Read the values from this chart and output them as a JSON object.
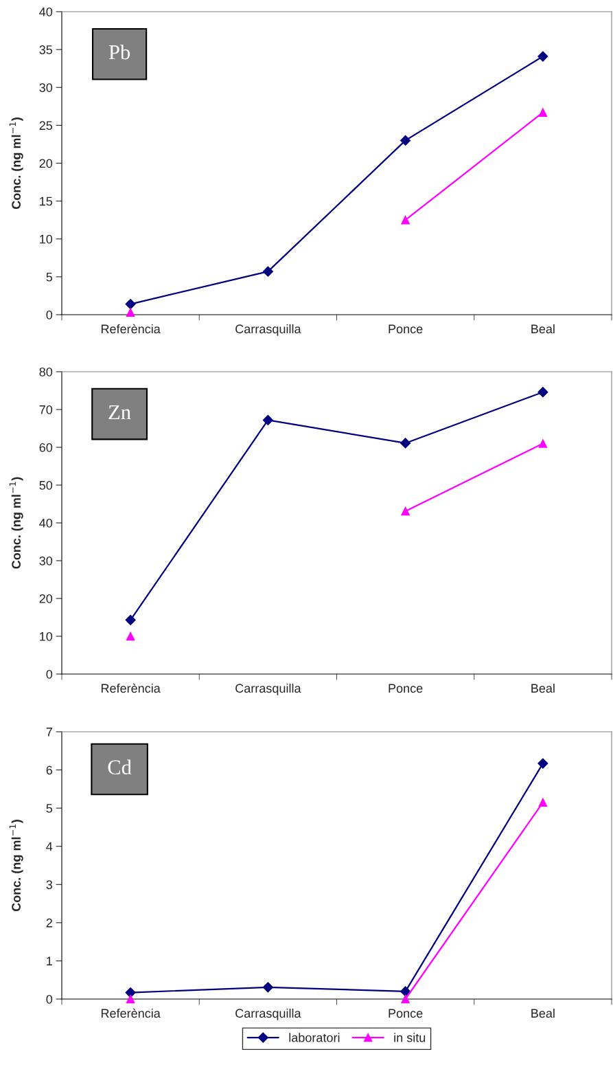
{
  "chart_data": [
    {
      "type": "line",
      "categories": [
        "Referència",
        "Carrasquilla",
        "Ponce",
        "Beal"
      ],
      "ylabel": "Conc. (ng ml$^{−1}$)",
      "annotations": [
        "Pb"
      ],
      "ylim": [
        0,
        40
      ],
      "yticks": [
        0,
        5,
        10,
        15,
        20,
        25,
        30,
        35,
        40
      ],
      "grid": false,
      "legend": "bottom",
      "series": [
        {
          "name": "laboratori",
          "color": "#000080",
          "marker": "diamond",
          "values": [
            1.4,
            5.7,
            23.0,
            34.1
          ]
        },
        {
          "name": "in situ",
          "color": "#ff00ff",
          "marker": "triangle",
          "values": [
            0.3,
            null,
            12.5,
            26.7
          ]
        }
      ]
    },
    {
      "type": "line",
      "categories": [
        "Referència",
        "Carrasquilla",
        "Ponce",
        "Beal"
      ],
      "ylabel": "Conc. (ng ml$^{−1}$)",
      "annotations": [
        "Zn"
      ],
      "ylim": [
        0,
        80
      ],
      "yticks": [
        0,
        10,
        20,
        30,
        40,
        50,
        60,
        70,
        80
      ],
      "grid": false,
      "legend": "bottom",
      "series": [
        {
          "color": "#000080",
          "marker": "diamond",
          "values": [
            14.3,
            67.2,
            61.1,
            74.6
          ]
        },
        {
          "color": "#ff00ff",
          "marker": "triangle",
          "values": [
            10.0,
            null,
            43.1,
            61.0
          ]
        }
      ]
    },
    {
      "type": "line",
      "categories": [
        "Referència",
        "Carrasquilla",
        "Ponce",
        "Beal"
      ],
      "ylabel": "Conc. (ng ml$^{−1}$)",
      "annotations": [
        "Cd"
      ],
      "ylim": [
        0,
        7
      ],
      "yticks": [
        0,
        1,
        2,
        3,
        4,
        5,
        6,
        7
      ],
      "grid": false,
      "legend": "bottom",
      "series": [
        {
          "color": "#000080",
          "marker": "diamond",
          "values": [
            0.17,
            0.31,
            0.2,
            6.17
          ]
        },
        {
          "color": "#ff00ff",
          "marker": "triangle",
          "values": [
            0.0,
            null,
            0.0,
            5.15
          ]
        }
      ]
    }
  ]
}
